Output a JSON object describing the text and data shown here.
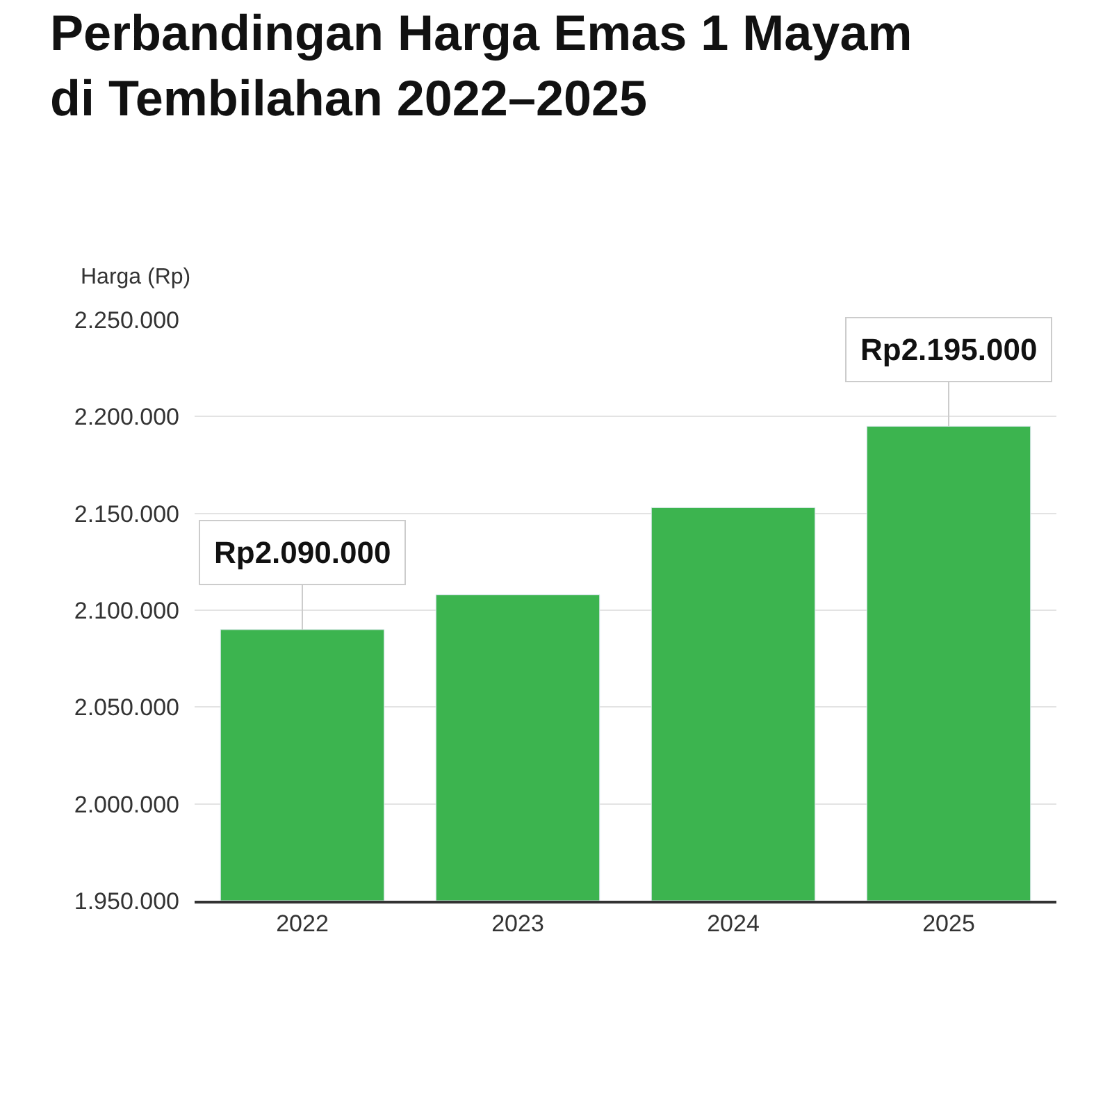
{
  "chart_data": {
    "type": "bar",
    "title": "Perbandingan Harga Emas 1 Mayam\ndi Tembilahan 2022–2025",
    "ylabel": "Harga (Rp)",
    "categories": [
      "2022",
      "2023",
      "2024",
      "2025"
    ],
    "values": [
      2090000,
      2108000,
      2153000,
      2195000
    ],
    "value_labels": [
      "Rp2.090.000",
      null,
      null,
      "Rp2.195.000"
    ],
    "color": "#3cb44f",
    "ylim": [
      1950000,
      2250000
    ],
    "yticks": [
      {
        "value": 1950000,
        "label": "1.950.000"
      },
      {
        "value": 2000000,
        "label": "2.000.000"
      },
      {
        "value": 2050000,
        "label": "2.050.000"
      },
      {
        "value": 2100000,
        "label": "2.100.000"
      },
      {
        "value": 2150000,
        "label": "2.150.000"
      },
      {
        "value": 2200000,
        "label": "2.200.000"
      },
      {
        "value": 2250000,
        "label": "2.250.000"
      }
    ],
    "grid": "y",
    "legend": false
  }
}
